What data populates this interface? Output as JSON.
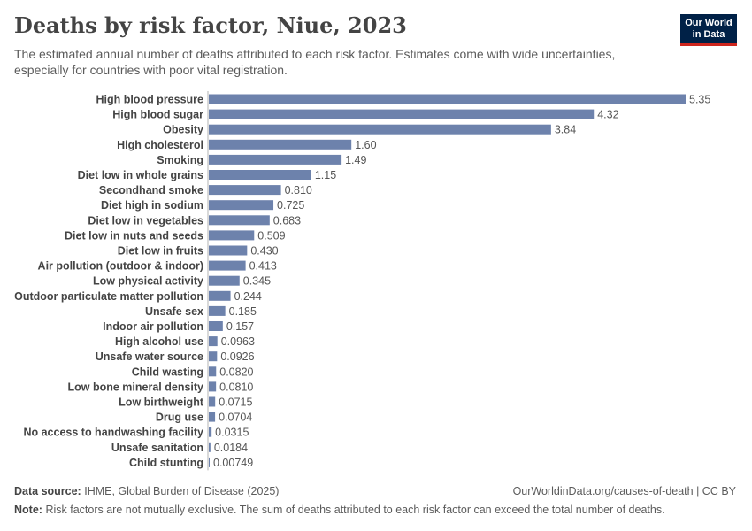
{
  "header": {
    "title": "Deaths by risk factor, Niue, 2023",
    "subtitle": "The estimated annual number of deaths attributed to each risk factor. Estimates come with wide uncertainties, especially for countries with poor vital registration."
  },
  "logo": {
    "line1": "Our World",
    "line2": "in Data"
  },
  "colors": {
    "bar": "#6d82ac",
    "axis": "#b3b3b3"
  },
  "chart_data": {
    "type": "bar",
    "orientation": "horizontal",
    "categories": [
      "High blood pressure",
      "High blood sugar",
      "Obesity",
      "High cholesterol",
      "Smoking",
      "Diet low in whole grains",
      "Secondhand smoke",
      "Diet high in sodium",
      "Diet low in vegetables",
      "Diet low in nuts and seeds",
      "Diet low in fruits",
      "Air pollution (outdoor & indoor)",
      "Low physical activity",
      "Outdoor particulate matter pollution",
      "Unsafe sex",
      "Indoor air pollution",
      "High alcohol use",
      "Unsafe water source",
      "Child wasting",
      "Low bone mineral density",
      "Low birthweight",
      "Drug use",
      "No access to handwashing facility",
      "Unsafe sanitation",
      "Child stunting"
    ],
    "values": [
      5.35,
      4.32,
      3.84,
      1.6,
      1.49,
      1.15,
      0.81,
      0.725,
      0.683,
      0.509,
      0.43,
      0.413,
      0.345,
      0.244,
      0.185,
      0.157,
      0.0963,
      0.0926,
      0.082,
      0.081,
      0.0715,
      0.0704,
      0.0315,
      0.0184,
      0.00749
    ],
    "value_labels": [
      "5.35",
      "4.32",
      "3.84",
      "1.60",
      "1.49",
      "1.15",
      "0.810",
      "0.725",
      "0.683",
      "0.509",
      "0.430",
      "0.413",
      "0.345",
      "0.244",
      "0.185",
      "0.157",
      "0.0963",
      "0.0926",
      "0.0820",
      "0.0810",
      "0.0715",
      "0.0704",
      "0.0315",
      "0.0184",
      "0.00749"
    ],
    "xlim": [
      0,
      5.35
    ]
  },
  "footer": {
    "source_label": "Data source:",
    "source_text": "IHME, Global Burden of Disease (2025)",
    "url": "OurWorldinData.org/causes-of-death | CC BY",
    "note_label": "Note:",
    "note_text": "Risk factors are not mutually exclusive. The sum of deaths attributed to each risk factor can exceed the total number of deaths."
  }
}
